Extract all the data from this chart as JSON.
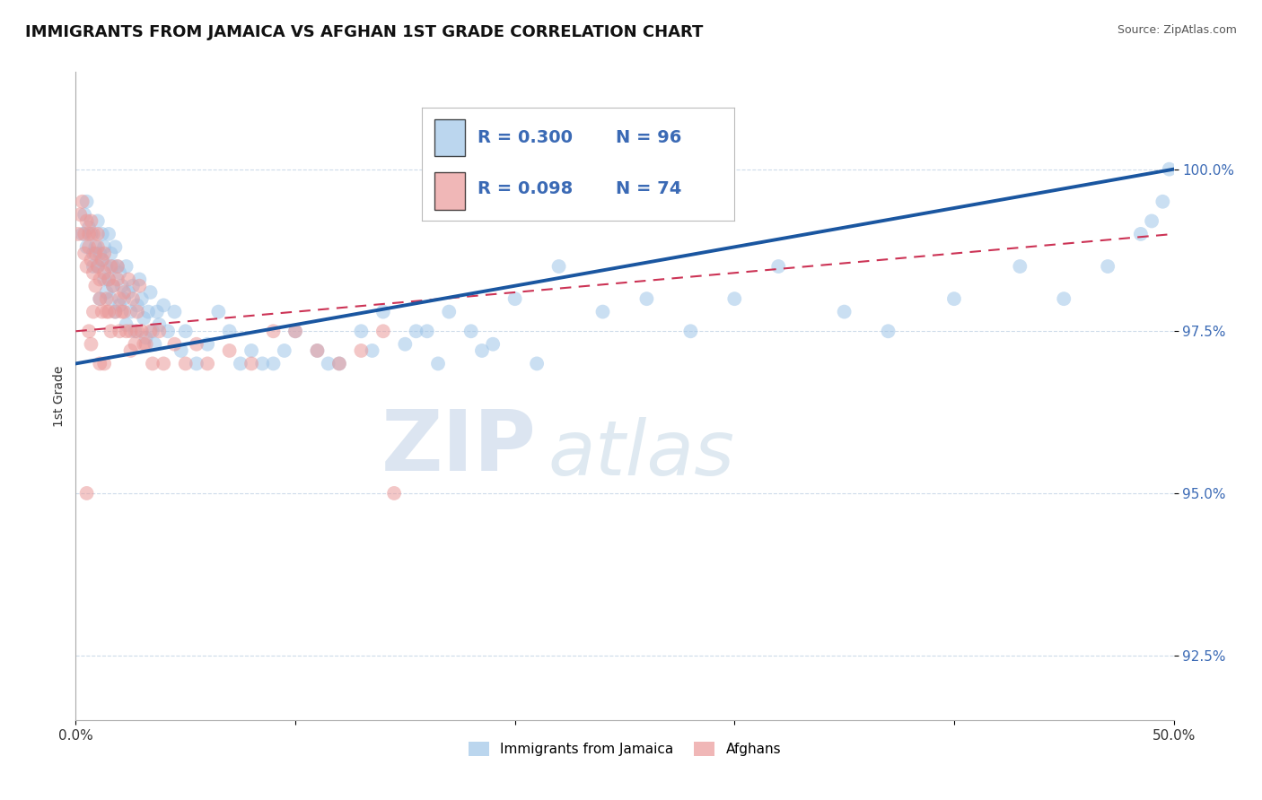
{
  "title": "IMMIGRANTS FROM JAMAICA VS AFGHAN 1ST GRADE CORRELATION CHART",
  "source_text": "Source: ZipAtlas.com",
  "ylabel": "1st Grade",
  "xlim": [
    0.0,
    50.0
  ],
  "ylim": [
    91.5,
    101.5
  ],
  "yticks": [
    92.5,
    95.0,
    97.5,
    100.0
  ],
  "ytick_labels": [
    "92.5%",
    "95.0%",
    "97.5%",
    "100.0%"
  ],
  "xticks": [
    0.0,
    10.0,
    20.0,
    30.0,
    40.0,
    50.0
  ],
  "xtick_labels": [
    "0.0%",
    "",
    "",
    "",
    "",
    "50.0%"
  ],
  "legend1_label": "Immigrants from Jamaica",
  "legend2_label": "Afghans",
  "R_blue": 0.3,
  "N_blue": 96,
  "R_pink": 0.098,
  "N_pink": 74,
  "blue_color": "#9fc5e8",
  "pink_color": "#ea9999",
  "blue_line_color": "#1a56a0",
  "pink_line_color": "#cc3355",
  "watermark_zip": "ZIP",
  "watermark_atlas": "atlas",
  "background_color": "#ffffff",
  "grid_color": "#c8d8e8",
  "title_fontsize": 13,
  "blue_line_x0": 0.0,
  "blue_line_y0": 97.0,
  "blue_line_x1": 50.0,
  "blue_line_y1": 100.0,
  "pink_line_x0": 0.0,
  "pink_line_y0": 97.5,
  "pink_line_x1": 50.0,
  "pink_line_y1": 99.0,
  "blue_points_x": [
    0.3,
    0.4,
    0.5,
    0.5,
    0.6,
    0.7,
    0.8,
    0.8,
    0.9,
    1.0,
    1.0,
    1.1,
    1.1,
    1.2,
    1.2,
    1.3,
    1.3,
    1.4,
    1.4,
    1.5,
    1.5,
    1.6,
    1.6,
    1.7,
    1.7,
    1.8,
    1.8,
    1.9,
    2.0,
    2.0,
    2.1,
    2.2,
    2.3,
    2.3,
    2.4,
    2.5,
    2.6,
    2.7,
    2.8,
    2.9,
    3.0,
    3.1,
    3.2,
    3.3,
    3.4,
    3.5,
    3.6,
    3.7,
    3.8,
    4.0,
    4.2,
    4.5,
    4.8,
    5.0,
    5.5,
    6.0,
    6.5,
    7.0,
    7.5,
    8.0,
    9.0,
    10.0,
    11.0,
    12.0,
    13.0,
    14.0,
    15.0,
    16.0,
    17.0,
    18.0,
    19.0,
    20.0,
    22.0,
    24.0,
    26.0,
    28.0,
    30.0,
    32.0,
    35.0,
    37.0,
    40.0,
    43.0,
    45.0,
    47.0,
    48.5,
    49.0,
    49.5,
    49.8,
    8.5,
    9.5,
    11.5,
    13.5,
    15.5,
    16.5,
    18.5,
    21.0
  ],
  "blue_points_y": [
    99.0,
    99.3,
    99.5,
    98.8,
    99.1,
    99.0,
    98.7,
    98.5,
    98.8,
    99.2,
    98.5,
    98.7,
    98.0,
    98.6,
    99.0,
    98.3,
    98.8,
    98.1,
    98.5,
    98.3,
    99.0,
    98.0,
    98.7,
    98.5,
    98.2,
    98.8,
    97.8,
    98.5,
    98.4,
    97.9,
    98.2,
    98.0,
    98.5,
    97.6,
    98.1,
    97.8,
    98.2,
    97.5,
    97.9,
    98.3,
    98.0,
    97.7,
    97.4,
    97.8,
    98.1,
    97.5,
    97.3,
    97.8,
    97.6,
    97.9,
    97.5,
    97.8,
    97.2,
    97.5,
    97.0,
    97.3,
    97.8,
    97.5,
    97.0,
    97.2,
    97.0,
    97.5,
    97.2,
    97.0,
    97.5,
    97.8,
    97.3,
    97.5,
    97.8,
    97.5,
    97.3,
    98.0,
    98.5,
    97.8,
    98.0,
    97.5,
    98.0,
    98.5,
    97.8,
    97.5,
    98.0,
    98.5,
    98.0,
    98.5,
    99.0,
    99.2,
    99.5,
    100.0,
    97.0,
    97.2,
    97.0,
    97.2,
    97.5,
    97.0,
    97.2,
    97.0
  ],
  "pink_points_x": [
    0.1,
    0.2,
    0.3,
    0.4,
    0.4,
    0.5,
    0.5,
    0.6,
    0.6,
    0.7,
    0.7,
    0.8,
    0.8,
    0.9,
    0.9,
    1.0,
    1.0,
    1.0,
    1.1,
    1.1,
    1.2,
    1.2,
    1.3,
    1.3,
    1.4,
    1.5,
    1.5,
    1.6,
    1.7,
    1.8,
    1.9,
    2.0,
    2.0,
    2.1,
    2.2,
    2.3,
    2.4,
    2.5,
    2.6,
    2.7,
    2.8,
    2.9,
    3.0,
    3.2,
    3.5,
    3.8,
    4.0,
    4.5,
    5.0,
    5.5,
    6.0,
    7.0,
    8.0,
    9.0,
    10.0,
    11.0,
    12.0,
    13.0,
    14.0,
    14.5,
    0.6,
    0.8,
    1.1,
    1.4,
    1.6,
    1.9,
    2.2,
    2.5,
    2.8,
    3.1,
    3.4,
    0.5,
    0.7,
    1.3
  ],
  "pink_points_y": [
    99.0,
    99.3,
    99.5,
    99.0,
    98.7,
    99.2,
    98.5,
    99.0,
    98.8,
    98.6,
    99.2,
    98.4,
    99.0,
    98.7,
    98.2,
    98.8,
    99.0,
    98.5,
    98.3,
    98.0,
    98.6,
    97.8,
    98.4,
    98.7,
    98.0,
    98.3,
    97.8,
    98.5,
    98.2,
    97.8,
    98.3,
    98.0,
    97.5,
    97.8,
    98.1,
    97.5,
    98.3,
    97.5,
    98.0,
    97.3,
    97.8,
    98.2,
    97.5,
    97.3,
    97.0,
    97.5,
    97.0,
    97.3,
    97.0,
    97.3,
    97.0,
    97.2,
    97.0,
    97.5,
    97.5,
    97.2,
    97.0,
    97.2,
    97.5,
    95.0,
    97.5,
    97.8,
    97.0,
    97.8,
    97.5,
    98.5,
    97.8,
    97.2,
    97.5,
    97.3,
    97.5,
    95.0,
    97.3,
    97.0
  ]
}
